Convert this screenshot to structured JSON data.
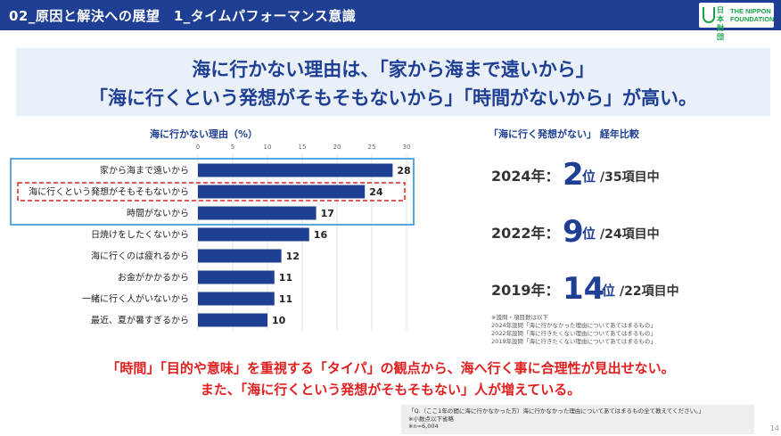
{
  "header": {
    "title": "02_原因と解決への展望　1_タイムパフォーマンス意識"
  },
  "logo": {
    "jp": "日本財団",
    "en_line1": "THE NIPPON",
    "en_line2": "FOUNDATION"
  },
  "headline": {
    "line1": "海に行かない理由は、「家から海まで遠いから」",
    "line2": "「海に行くという発想がそもそもないから」「時間がないから」が高い。"
  },
  "chart_data": {
    "type": "bar",
    "orientation": "horizontal",
    "title": "海に行かない理由（%）",
    "categories": [
      "家から海まで遠いから",
      "海に行くという発想がそもそもないから",
      "時間がないから",
      "日焼けをしたくないから",
      "海に行くのは疲れるから",
      "お金がかかるから",
      "一緒に行く人がいないから",
      "最近、夏が暑すぎるから"
    ],
    "values": [
      28,
      24,
      17,
      16,
      12,
      11,
      11,
      10
    ],
    "xlim": [
      0,
      30
    ],
    "ticks": [
      0,
      5,
      10,
      15,
      20,
      25,
      30
    ],
    "bar_color": "#1f3f95",
    "highlight_box_color": "#5aa7e0",
    "highlight_dashed_color": "#e02020"
  },
  "ranking": {
    "title": "「海に行く発想がない」 経年比較",
    "rows": [
      {
        "year": "2024年：",
        "rank": "2",
        "unit": "位",
        "of": "/35項目中"
      },
      {
        "year": "2022年：",
        "rank": "9",
        "unit": "位",
        "of": "/24項目中"
      },
      {
        "year": "2019年：",
        "rank": "14",
        "unit": "位",
        "of": "/22項目中"
      }
    ],
    "notes": [
      "※設問・項目数は以下",
      "2024年設問「海に行かなかった理由についてあてはまるもの」",
      "2022年設問「海に行きたくない理由についてあてはまるもの」",
      "2019年設問「海に行きたくない理由についてあてはまるもの」"
    ]
  },
  "conclusion": {
    "line1": "「時間」「目的や意味」を重視する「タイパ」の観点から、海へ行く事に合理性が見出せない。",
    "line2": "また、「海に行くという発想がそもそもない」人が増えている。"
  },
  "footnote": {
    "line1": "「Q.（ここ1年の間に海に行かなかった方）海に行かなかった理由についてあてはまるもの全て教えてください。」",
    "line2": "※小数点以下省略",
    "line3": "※n=6,004"
  },
  "page_number": "14"
}
